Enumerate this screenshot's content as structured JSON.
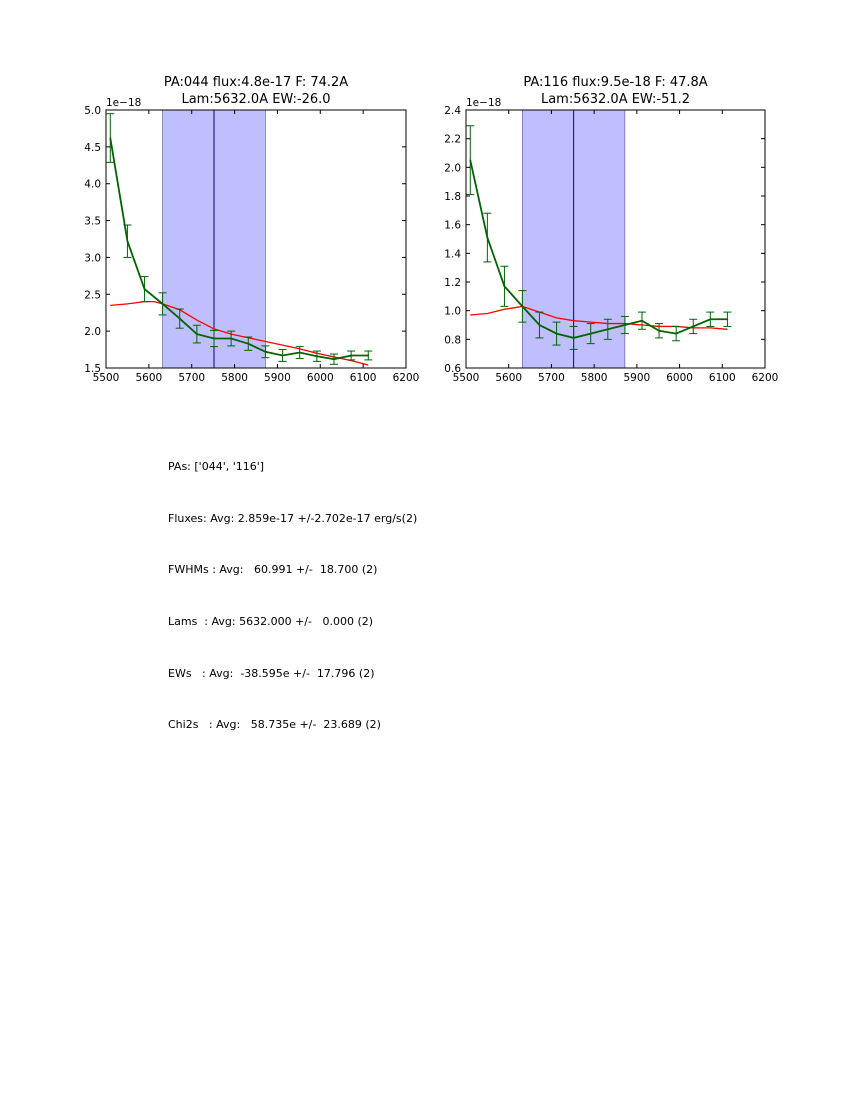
{
  "chart_data": [
    {
      "type": "line",
      "title_line1": "PA:044 flux:4.8e-17 F: 74.2A",
      "title_line2": "Lam:5632.0A EW:-26.0",
      "xlim": [
        5500,
        6200
      ],
      "ylim": [
        1.5,
        5.0
      ],
      "x_ticks": [
        5500,
        5600,
        5700,
        5800,
        5900,
        6000,
        6100,
        6200
      ],
      "y_ticks": [
        1.5,
        2.0,
        2.5,
        3.0,
        3.5,
        4.0,
        4.5,
        5.0
      ],
      "y_tick_labels": [
        "1.5",
        "2.0",
        "2.5",
        "3.0",
        "3.5",
        "4.0",
        "4.5",
        "5.0"
      ],
      "offset_text": "1e−18",
      "span": [
        5632,
        5872
      ],
      "vline": 5752,
      "colors": {
        "data": "#006400",
        "fit": "#ff0000",
        "span": "#8080ff",
        "vline": "#00008b"
      },
      "series": [
        {
          "name": "data",
          "x": [
            5510,
            5550,
            5590,
            5632,
            5672,
            5712,
            5752,
            5792,
            5832,
            5872,
            5912,
            5952,
            5992,
            6032,
            6072,
            6112
          ],
          "y": [
            4.62,
            3.22,
            2.57,
            2.37,
            2.17,
            1.96,
            1.9,
            1.9,
            1.83,
            1.72,
            1.67,
            1.71,
            1.66,
            1.62,
            1.67,
            1.67
          ],
          "err": [
            0.33,
            0.22,
            0.17,
            0.15,
            0.13,
            0.12,
            0.11,
            0.1,
            0.09,
            0.08,
            0.08,
            0.08,
            0.07,
            0.07,
            0.06,
            0.06
          ]
        },
        {
          "name": "fit",
          "x": [
            5510,
            5550,
            5590,
            5612,
            5632,
            5672,
            5712,
            5752,
            5792,
            5832,
            5872,
            5912,
            5952,
            5992,
            6032,
            6072,
            6112
          ],
          "y": [
            2.35,
            2.37,
            2.4,
            2.4,
            2.37,
            2.29,
            2.15,
            2.03,
            1.96,
            1.91,
            1.86,
            1.81,
            1.76,
            1.7,
            1.65,
            1.6,
            1.54
          ]
        }
      ]
    },
    {
      "type": "line",
      "title_line1": "PA:116 flux:9.5e-18 F: 47.8A",
      "title_line2": "Lam:5632.0A EW:-51.2",
      "xlim": [
        5500,
        6200
      ],
      "ylim": [
        0.6,
        2.4
      ],
      "x_ticks": [
        5500,
        5600,
        5700,
        5800,
        5900,
        6000,
        6100,
        6200
      ],
      "y_ticks": [
        0.6,
        0.8,
        1.0,
        1.2,
        1.4,
        1.6,
        1.8,
        2.0,
        2.2,
        2.4
      ],
      "y_tick_labels": [
        "0.6",
        "0.8",
        "1.0",
        "1.2",
        "1.4",
        "1.6",
        "1.8",
        "2.0",
        "2.2",
        "2.4"
      ],
      "offset_text": "1e−18",
      "span": [
        5632,
        5872
      ],
      "vline": 5752,
      "colors": {
        "data": "#006400",
        "fit": "#ff0000",
        "span": "#8080ff",
        "vline": "#00008b"
      },
      "series": [
        {
          "name": "data",
          "x": [
            5510,
            5550,
            5590,
            5632,
            5672,
            5712,
            5752,
            5792,
            5832,
            5872,
            5912,
            5952,
            5992,
            6032,
            6072,
            6112
          ],
          "y": [
            2.05,
            1.51,
            1.17,
            1.03,
            0.9,
            0.84,
            0.81,
            0.84,
            0.87,
            0.9,
            0.93,
            0.86,
            0.84,
            0.89,
            0.94,
            0.94
          ],
          "err": [
            0.24,
            0.17,
            0.14,
            0.11,
            0.09,
            0.08,
            0.08,
            0.07,
            0.07,
            0.06,
            0.06,
            0.05,
            0.05,
            0.05,
            0.05,
            0.05
          ]
        },
        {
          "name": "fit",
          "x": [
            5510,
            5550,
            5590,
            5612,
            5632,
            5672,
            5712,
            5752,
            5792,
            5832,
            5872,
            5912,
            5952,
            5992,
            6032,
            6072,
            6112
          ],
          "y": [
            0.97,
            0.98,
            1.01,
            1.02,
            1.03,
            0.99,
            0.95,
            0.93,
            0.92,
            0.91,
            0.91,
            0.9,
            0.89,
            0.89,
            0.88,
            0.88,
            0.87
          ]
        }
      ]
    }
  ],
  "stats": {
    "pas": "PAs: ['044', '116']",
    "fluxes": "Fluxes: Avg: 2.859e-17 +/-2.702e-17 erg/s(2)",
    "fwhms": "FWHMs : Avg:   60.991 +/-  18.700 (2)",
    "lams": "Lams  : Avg: 5632.000 +/-   0.000 (2)",
    "ews": "EWs   : Avg:  -38.595e +/-  17.796 (2)",
    "chi2s": "Chi2s   : Avg:   58.735e +/-  23.689 (2)"
  }
}
